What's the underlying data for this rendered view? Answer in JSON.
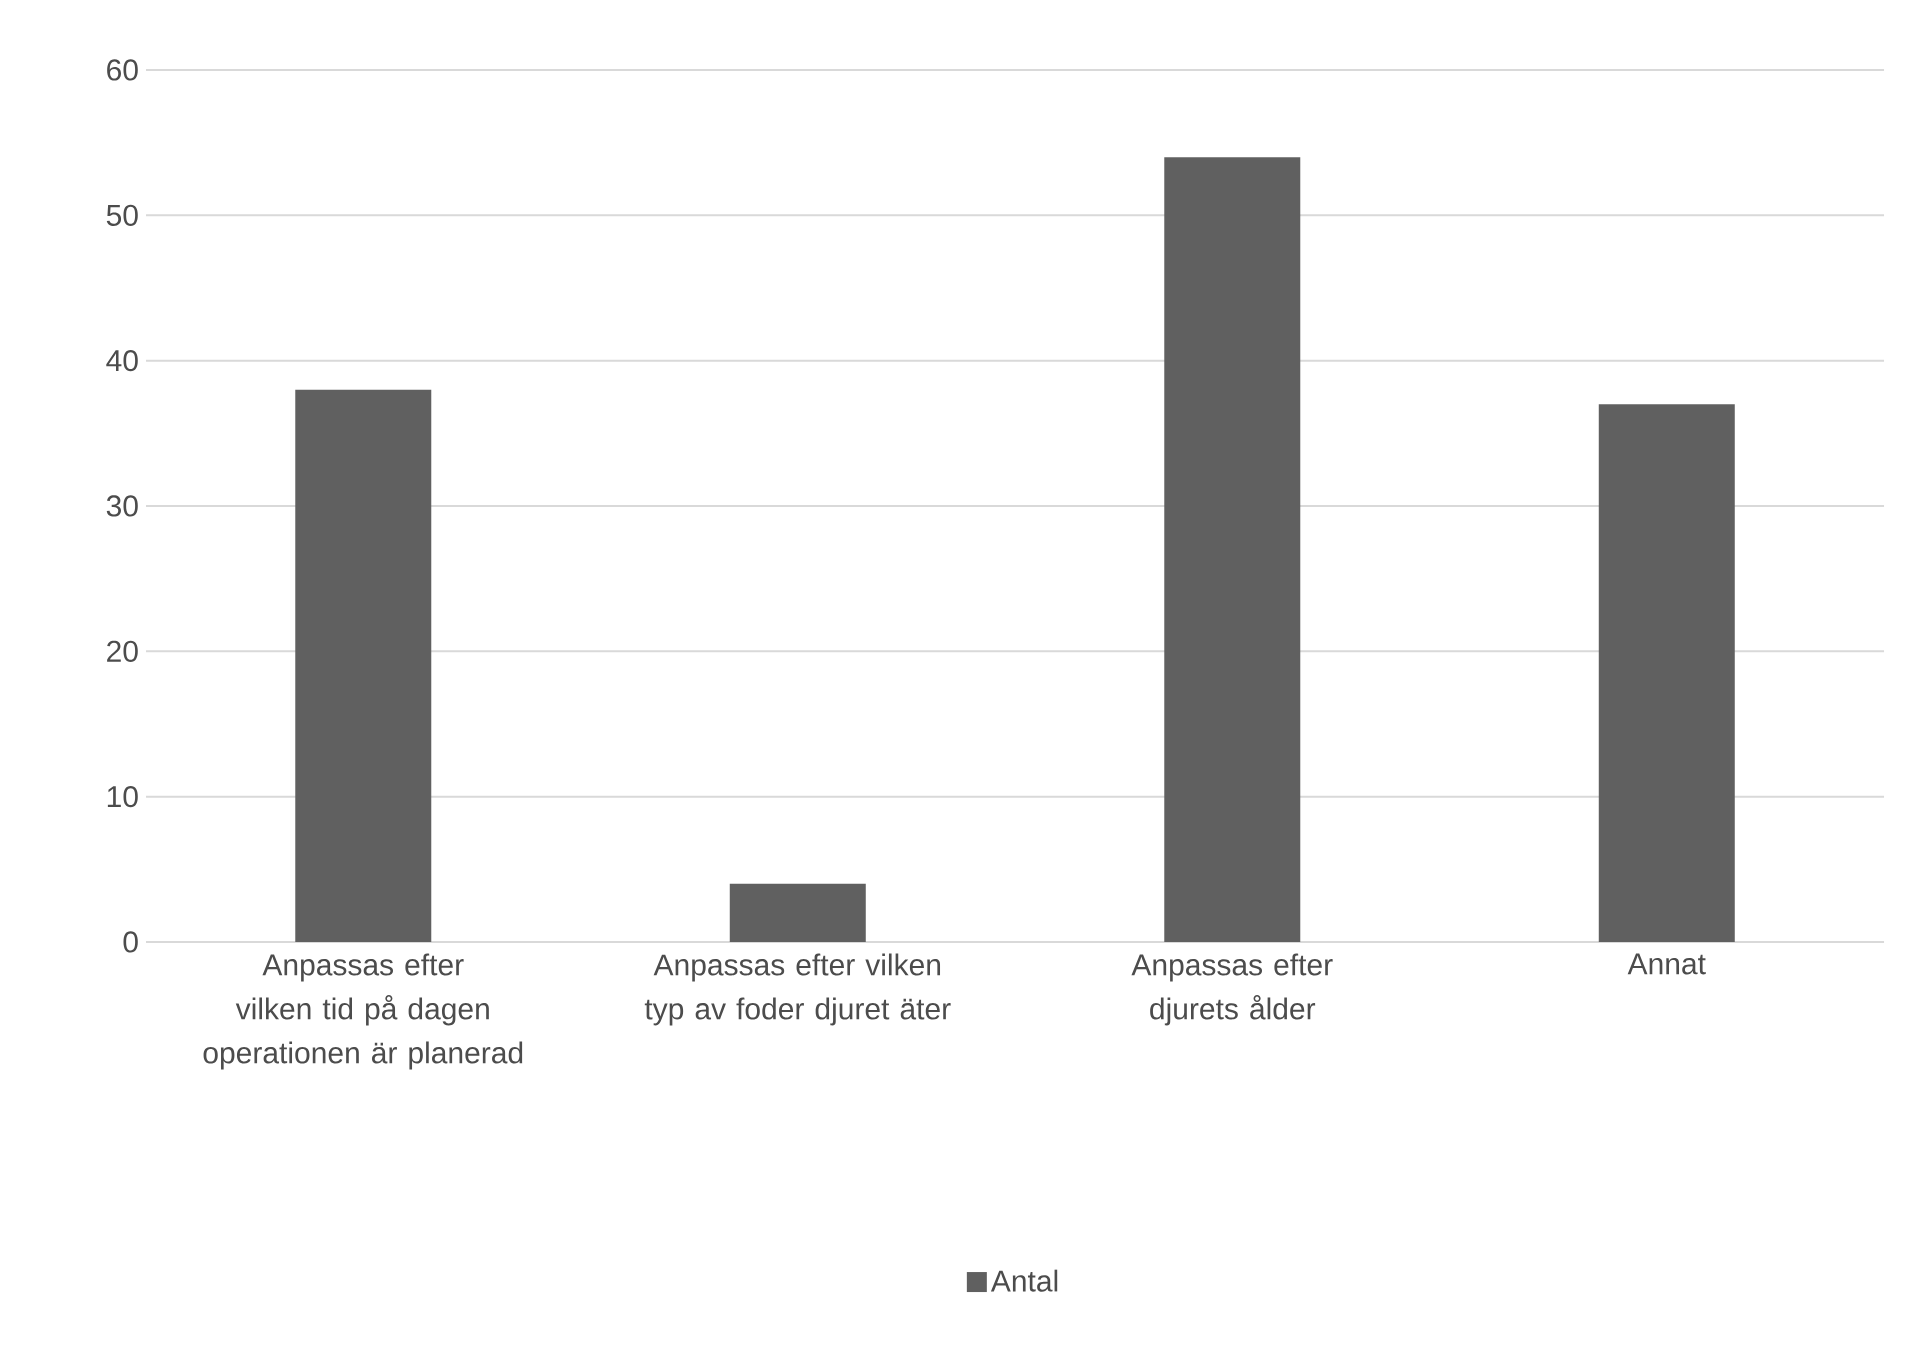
{
  "chart_data": {
    "type": "bar",
    "categories": [
      "Anpassas efter vilken tid på dagen operationen är planerad",
      "Anpassas efter vilken typ av foder djuret äter",
      "Anpassas efter djurets ålder",
      "Annat"
    ],
    "series": [
      {
        "name": "Antal",
        "color": "#606060",
        "values": [
          38,
          4,
          54,
          37
        ]
      }
    ],
    "ylim": [
      0,
      60
    ],
    "yticks": [
      0,
      10,
      20,
      30,
      40,
      50,
      60
    ],
    "grid": "y",
    "legend": "bottom"
  }
}
